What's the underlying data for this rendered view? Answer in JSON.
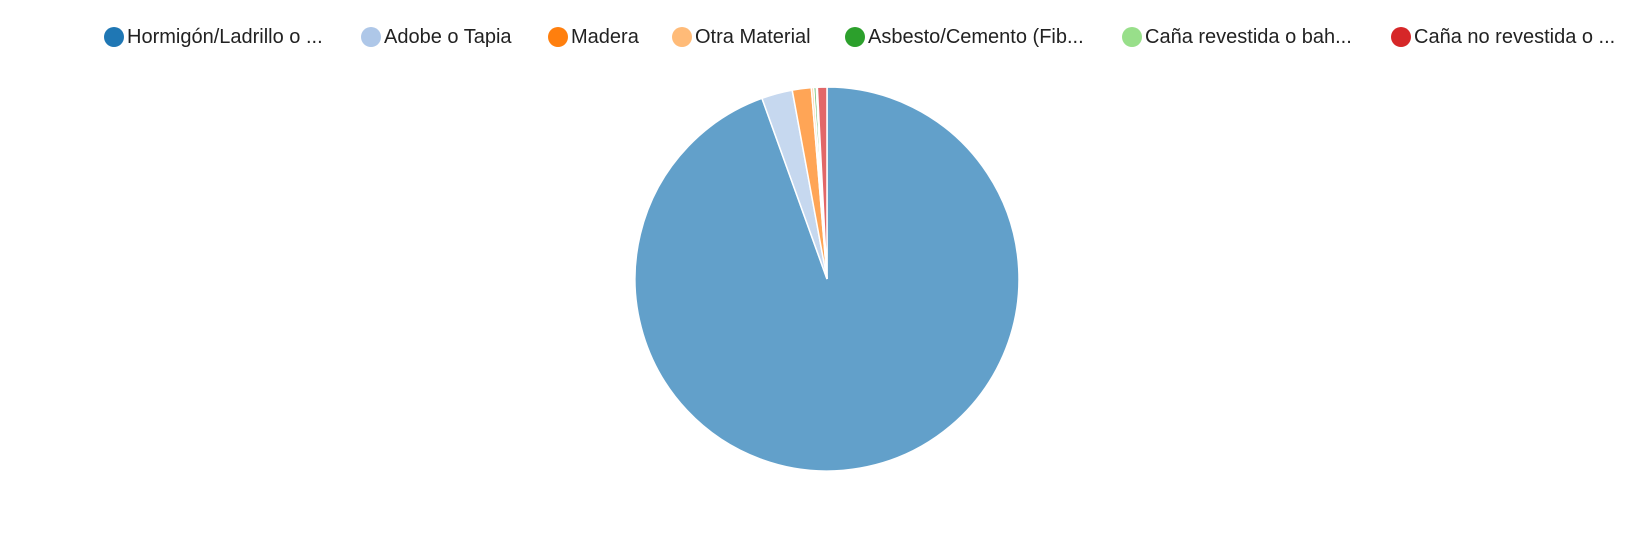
{
  "chart_data": {
    "type": "pie",
    "legend_position": "top",
    "series": [
      {
        "label": "Hormigón/Ladrillo o ...",
        "value": 94.5,
        "color": "#1f77b4"
      },
      {
        "label": "Adobe o Tapia",
        "value": 2.6,
        "color": "#aec7e8"
      },
      {
        "label": "Madera",
        "value": 1.6,
        "color": "#ff7f0e"
      },
      {
        "label": "Otra Material",
        "value": 0.2,
        "color": "#ffbb78"
      },
      {
        "label": "Asbesto/Cemento (Fib...",
        "value": 0.2,
        "color": "#2ca02c"
      },
      {
        "label": "Caña revestida o bah...",
        "value": 0.1,
        "color": "#98df8a"
      },
      {
        "label": "Caña no revestida o ...",
        "value": 0.8,
        "color": "#d62728"
      }
    ]
  }
}
